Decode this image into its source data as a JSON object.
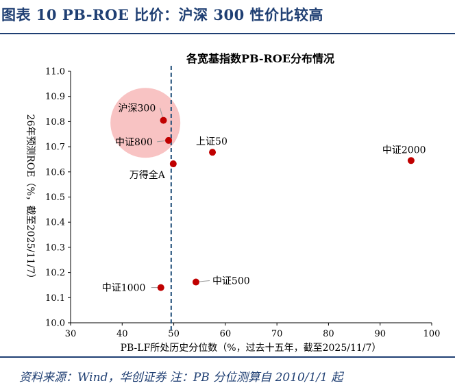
{
  "figure": {
    "title": "图表 10   PB-ROE 比价：沪深 300 性价比较高",
    "source": "资料来源：Wind，华创证券  注：PB 分位测算自 2010/1/1 起"
  },
  "colors": {
    "brand": "#1f3f73",
    "marker": "#c00000",
    "highlight": "#f4a3a3",
    "guide_line": "#1f4e79",
    "axis": "#000000"
  },
  "chart_data": {
    "type": "scatter",
    "title": "各宽基指数PB-ROE分布情况",
    "xlabel": "PB-LF所处历史分位数（%，过去十五年，截至2025/11/7）",
    "ylabel": "26年预测ROE（%，截至2025/11/7）",
    "xlim": [
      30,
      100
    ],
    "ylim": [
      10.0,
      11.0
    ],
    "x_ticks": [
      "30",
      "40",
      "50",
      "60",
      "70",
      "80",
      "90",
      "100"
    ],
    "y_ticks": [
      "10.0",
      "10.1",
      "10.2",
      "10.3",
      "10.4",
      "10.5",
      "10.6",
      "10.7",
      "10.8",
      "10.9",
      "11.0"
    ],
    "grid": false,
    "reference_line_x": 49.5,
    "highlight_center": {
      "x": 44.5,
      "y": 10.795
    },
    "points": [
      {
        "name": "沪深300",
        "x": 48.0,
        "y": 10.805
      },
      {
        "name": "中证800",
        "x": 49.0,
        "y": 10.725
      },
      {
        "name": "万得全A",
        "x": 49.9,
        "y": 10.632
      },
      {
        "name": "上证50",
        "x": 57.5,
        "y": 10.678
      },
      {
        "name": "中证2000",
        "x": 96.0,
        "y": 10.645
      },
      {
        "name": "中证1000",
        "x": 47.5,
        "y": 10.14
      },
      {
        "name": "中证500",
        "x": 54.3,
        "y": 10.162
      }
    ]
  }
}
